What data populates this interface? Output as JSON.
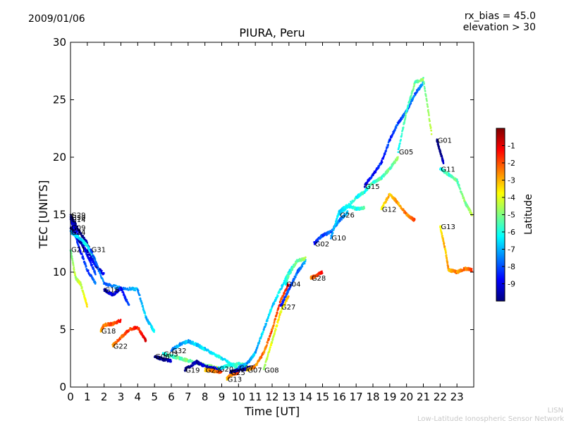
{
  "header": {
    "date": "2009/01/06",
    "rx_bias": "rx_bias = 45.0",
    "elevation": "elevation > 30"
  },
  "watermark": {
    "line1": "LISN",
    "line2": "Low-Latitude Ionospheric Sensor Network"
  },
  "colorbar": {
    "label": "Latitude",
    "ticks": [
      "-1",
      "-2",
      "-3",
      "-4",
      "-5",
      "-6",
      "-7",
      "-8",
      "-9"
    ],
    "range": [
      -10,
      0
    ],
    "colormap": [
      "#00007f",
      "#0000ff",
      "#0080ff",
      "#00ffff",
      "#80ff80",
      "#ffff00",
      "#ff8000",
      "#ff0000",
      "#7f0000"
    ]
  },
  "chart_data": {
    "type": "scatter",
    "title": "PIURA, Peru",
    "xlabel": "Time [UT]",
    "ylabel": "TEC [UNITS]",
    "xlim": [
      0,
      24
    ],
    "ylim": [
      0,
      30
    ],
    "xticks": [
      0,
      1,
      2,
      3,
      4,
      5,
      6,
      7,
      8,
      9,
      10,
      11,
      12,
      13,
      14,
      15,
      16,
      17,
      18,
      19,
      20,
      21,
      22,
      23
    ],
    "yticks": [
      0,
      5,
      10,
      15,
      20,
      25,
      30
    ],
    "grid": false,
    "series": [
      {
        "name": "G29",
        "lat": -9.5,
        "points": [
          [
            0.0,
            15.0
          ],
          [
            0.5,
            13.6
          ],
          [
            1.0,
            12.5
          ],
          [
            1.5,
            10.6
          ],
          [
            2.0,
            9.8
          ]
        ]
      },
      {
        "name": "G30",
        "lat": -8.5,
        "points": [
          [
            0.0,
            14.8
          ],
          [
            0.5,
            13.0
          ],
          [
            1.0,
            11.5
          ],
          [
            1.5,
            9.8
          ]
        ]
      },
      {
        "name": "G14",
        "lat": -8.0,
        "points": [
          [
            0.0,
            14.6
          ],
          [
            0.5,
            12.2
          ],
          [
            1.0,
            10.2
          ],
          [
            1.5,
            9.0
          ]
        ]
      },
      {
        "name": "G09",
        "lat": -9.0,
        "points": [
          [
            0.0,
            13.9
          ],
          [
            0.5,
            12.8
          ],
          [
            1.0,
            11.8
          ],
          [
            1.5,
            10.5
          ]
        ]
      },
      {
        "name": "G24",
        "lat": -6.0,
        "points": [
          [
            0.0,
            13.5
          ],
          [
            0.5,
            13.0
          ],
          [
            1.0,
            12.3
          ],
          [
            1.5,
            11.0
          ]
        ]
      },
      {
        "name": "G31",
        "lat": -7.0,
        "points": [
          [
            1.2,
            12.0
          ],
          [
            2.0,
            9.0
          ],
          [
            3.0,
            8.6
          ],
          [
            4.0,
            8.5
          ],
          [
            4.5,
            6.0
          ],
          [
            5.0,
            4.8
          ]
        ]
      },
      {
        "name": "G21",
        "lat": -4.0,
        "points": [
          [
            0.0,
            12.0
          ],
          [
            0.3,
            9.5
          ],
          [
            0.6,
            9.0
          ],
          [
            1.0,
            7.0
          ]
        ]
      },
      {
        "name": "G16",
        "lat": -8.5,
        "points": [
          [
            2.0,
            8.5
          ],
          [
            2.5,
            8.0
          ],
          [
            3.0,
            8.6
          ],
          [
            3.5,
            7.0
          ]
        ]
      },
      {
        "name": "G18",
        "lat": -1.8,
        "points": [
          [
            1.8,
            4.9
          ],
          [
            2.0,
            5.4
          ],
          [
            2.5,
            5.5
          ],
          [
            3.0,
            5.8
          ]
        ]
      },
      {
        "name": "G22",
        "lat": -1.5,
        "points": [
          [
            2.5,
            3.6
          ],
          [
            3.0,
            4.3
          ],
          [
            3.5,
            5.0
          ],
          [
            4.0,
            5.2
          ],
          [
            4.5,
            4.0
          ]
        ]
      },
      {
        "name": "G06",
        "lat": -9.5,
        "points": [
          [
            5.0,
            2.7
          ],
          [
            5.5,
            2.4
          ],
          [
            6.0,
            2.3
          ]
        ]
      },
      {
        "name": "G03",
        "lat": -5.0,
        "points": [
          [
            5.5,
            2.9
          ],
          [
            6.0,
            2.7
          ],
          [
            6.5,
            2.5
          ],
          [
            7.0,
            2.3
          ],
          [
            8.0,
            1.9
          ],
          [
            9.0,
            1.6
          ]
        ]
      },
      {
        "name": "G32",
        "lat": -6.5,
        "points": [
          [
            6.0,
            3.2
          ],
          [
            6.5,
            3.7
          ],
          [
            7.0,
            4.0
          ],
          [
            7.5,
            3.7
          ],
          [
            8.0,
            3.3
          ],
          [
            9.0,
            2.5
          ],
          [
            10.0,
            1.6
          ]
        ]
      },
      {
        "name": "G19",
        "lat": -9.0,
        "points": [
          [
            6.8,
            1.5
          ],
          [
            7.5,
            2.2
          ],
          [
            8.0,
            1.8
          ],
          [
            9.0,
            1.5
          ]
        ]
      },
      {
        "name": "G23",
        "lat": -2.0,
        "points": [
          [
            8.0,
            1.5
          ],
          [
            8.5,
            1.4
          ],
          [
            9.0,
            1.3
          ]
        ]
      },
      {
        "name": "G20",
        "lat": -5.5,
        "points": [
          [
            8.8,
            1.6
          ],
          [
            9.5,
            1.9
          ],
          [
            10.0,
            2.0
          ],
          [
            10.5,
            1.9
          ]
        ]
      },
      {
        "name": "G13",
        "lat": -2.0,
        "points": [
          [
            9.3,
            0.7
          ],
          [
            9.5,
            1.0
          ],
          [
            10.0,
            1.3
          ]
        ]
      },
      {
        "name": "G25",
        "lat": -9.5,
        "points": [
          [
            9.5,
            1.3
          ],
          [
            10.0,
            1.5
          ],
          [
            10.5,
            1.6
          ],
          [
            11.0,
            1.8
          ]
        ]
      },
      {
        "name": "G07",
        "lat": -2.0,
        "points": [
          [
            10.5,
            1.5
          ],
          [
            11.0,
            1.8
          ],
          [
            11.5,
            3.0
          ],
          [
            12.0,
            5.0
          ],
          [
            12.5,
            7.5
          ],
          [
            13.0,
            9.0
          ]
        ]
      },
      {
        "name": "G17",
        "lat": -6.5,
        "points": [
          [
            10.0,
            1.7
          ],
          [
            10.5,
            2.0
          ],
          [
            11.0,
            3.0
          ],
          [
            11.5,
            5.0
          ],
          [
            12.0,
            7.0
          ],
          [
            12.5,
            8.5
          ],
          [
            13.0,
            10.0
          ],
          [
            13.5,
            11.0
          ]
        ]
      },
      {
        "name": "G08",
        "lat": -3.5,
        "points": [
          [
            11.5,
            1.5
          ],
          [
            12.0,
            4.0
          ],
          [
            12.5,
            6.5
          ],
          [
            13.0,
            8.0
          ]
        ]
      },
      {
        "name": "G27",
        "lat": -7.5,
        "points": [
          [
            12.5,
            7.0
          ],
          [
            13.0,
            8.5
          ],
          [
            13.5,
            10.0
          ],
          [
            14.0,
            11.0
          ]
        ]
      },
      {
        "name": "G28",
        "lat": -1.5,
        "points": [
          [
            14.3,
            9.5
          ],
          [
            14.5,
            9.6
          ],
          [
            15.0,
            10.0
          ]
        ]
      },
      {
        "name": "G04",
        "lat": -5.0,
        "points": [
          [
            12.8,
            9.0
          ],
          [
            13.0,
            9.8
          ],
          [
            13.5,
            11.0
          ],
          [
            14.0,
            11.2
          ]
        ]
      },
      {
        "name": "G02",
        "lat": -7.5,
        "points": [
          [
            14.5,
            12.5
          ],
          [
            15.0,
            13.2
          ],
          [
            15.5,
            13.5
          ],
          [
            16.0,
            14.5
          ],
          [
            16.5,
            15.2
          ]
        ]
      },
      {
        "name": "G10",
        "lat": -6.0,
        "points": [
          [
            15.5,
            13.0
          ],
          [
            16.0,
            15.3
          ],
          [
            16.5,
            15.8
          ],
          [
            17.0,
            15.5
          ],
          [
            17.5,
            15.6
          ]
        ]
      },
      {
        "name": "G26",
        "lat": -5.5,
        "points": [
          [
            16.0,
            15.0
          ],
          [
            17.0,
            16.5
          ],
          [
            17.5,
            17.0
          ],
          [
            18.0,
            17.8
          ],
          [
            18.5,
            18.2
          ],
          [
            19.0,
            19.0
          ],
          [
            19.5,
            20.0
          ]
        ]
      },
      {
        "name": "G15",
        "lat": -8.0,
        "points": [
          [
            17.5,
            17.5
          ],
          [
            18.0,
            18.5
          ],
          [
            18.5,
            19.5
          ],
          [
            19.0,
            21.5
          ],
          [
            19.5,
            23.0
          ],
          [
            20.0,
            24.0
          ],
          [
            20.5,
            25.5
          ],
          [
            21.0,
            26.5
          ]
        ]
      },
      {
        "name": "G12",
        "lat": -2.5,
        "points": [
          [
            18.5,
            15.5
          ],
          [
            19.0,
            16.8
          ],
          [
            19.5,
            16.0
          ],
          [
            20.0,
            15.0
          ],
          [
            20.5,
            14.5
          ]
        ]
      },
      {
        "name": "G05",
        "lat": -5.0,
        "points": [
          [
            19.5,
            20.5
          ],
          [
            20.0,
            24.0
          ],
          [
            20.5,
            26.5
          ],
          [
            21.0,
            26.8
          ],
          [
            21.5,
            22.0
          ]
        ]
      },
      {
        "name": "G01",
        "lat": -9.5,
        "points": [
          [
            21.8,
            21.5
          ],
          [
            22.0,
            20.5
          ],
          [
            22.2,
            19.5
          ]
        ]
      },
      {
        "name": "G11",
        "lat": -5.0,
        "points": [
          [
            22.0,
            19.0
          ],
          [
            22.5,
            18.5
          ],
          [
            23.0,
            18.0
          ],
          [
            23.5,
            16.0
          ],
          [
            23.9,
            15.0
          ]
        ]
      },
      {
        "name": "G13b",
        "lat": -2.5,
        "points": [
          [
            22.0,
            14.0
          ],
          [
            22.3,
            12.0
          ],
          [
            22.5,
            10.2
          ],
          [
            23.0,
            10.0
          ],
          [
            23.5,
            10.3
          ],
          [
            23.9,
            10.2
          ]
        ]
      }
    ]
  }
}
